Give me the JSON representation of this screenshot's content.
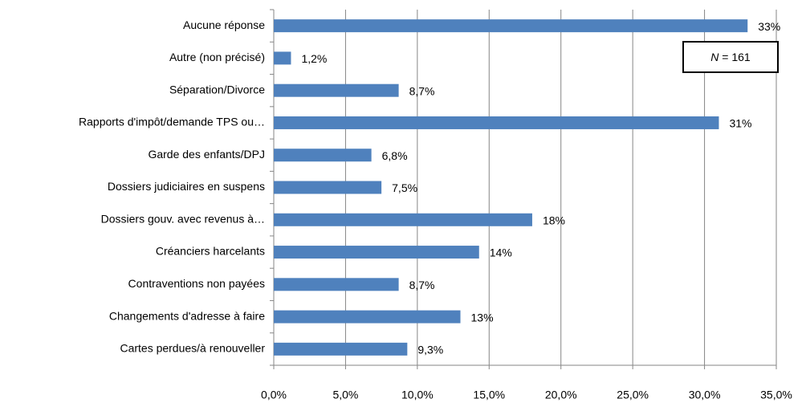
{
  "chart_data": {
    "type": "bar",
    "orientation": "horizontal",
    "categories": [
      "Aucune réponse",
      "Autre (non précisé)",
      "Séparation/Divorce",
      "Rapports d'impôt/demande TPS ou…",
      "Garde des enfants/DPJ",
      "Dossiers judiciaires en suspens",
      "Dossiers gouv. avec revenus à…",
      "Créanciers harcelants",
      "Contraventions non payées",
      "Changements d'adresse à faire",
      "Cartes perdues/à renouveller"
    ],
    "values": [
      33,
      1.2,
      8.7,
      31,
      6.8,
      7.5,
      18,
      14.3,
      8.7,
      13,
      9.3
    ],
    "value_labels": [
      "33%",
      "1,2%",
      "8,7%",
      "31%",
      "6,8%",
      "7,5%",
      "18%",
      "14%",
      "8,7%",
      "13%",
      "9,3%"
    ],
    "color": "#4f81bd",
    "xlim": [
      0,
      35
    ],
    "xticks": [
      {
        "value": 0,
        "label": "0,0%"
      },
      {
        "value": 5,
        "label": "5,0%"
      },
      {
        "value": 10,
        "label": "10,0%"
      },
      {
        "value": 15,
        "label": "15,0%"
      },
      {
        "value": 20,
        "label": "20,0%"
      },
      {
        "value": 25,
        "label": "25,0%"
      },
      {
        "value": 30,
        "label": "30,0%"
      },
      {
        "value": 35,
        "label": "35,0%"
      }
    ],
    "grid": true,
    "annotation": {
      "symbol": "N",
      "text": " = 161"
    }
  }
}
